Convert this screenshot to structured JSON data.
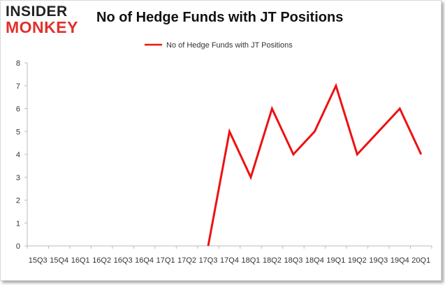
{
  "logo": {
    "line1": "INSIDER",
    "line2": "MONKEY"
  },
  "chart_data": {
    "type": "line",
    "title": "No of Hedge Funds with JT Positions",
    "legend": "top-center",
    "grid": false,
    "xlabel": "",
    "ylabel": "",
    "ylim": [
      0,
      8
    ],
    "yticks": [
      "0",
      "1",
      "2",
      "3",
      "4",
      "5",
      "6",
      "7",
      "8"
    ],
    "categories": [
      "15Q3",
      "15Q4",
      "16Q1",
      "16Q2",
      "16Q3",
      "16Q4",
      "17Q1",
      "17Q2",
      "17Q3",
      "17Q4",
      "18Q1",
      "18Q2",
      "18Q3",
      "18Q4",
      "19Q1",
      "19Q2",
      "19Q3",
      "19Q4",
      "20Q1"
    ],
    "series": [
      {
        "name": "No of Hedge Funds with JT Positions",
        "color": "#ee1111",
        "values": [
          null,
          null,
          null,
          null,
          null,
          null,
          null,
          null,
          0,
          5,
          3,
          6,
          4,
          5,
          7,
          4,
          5,
          6,
          4
        ]
      }
    ]
  }
}
